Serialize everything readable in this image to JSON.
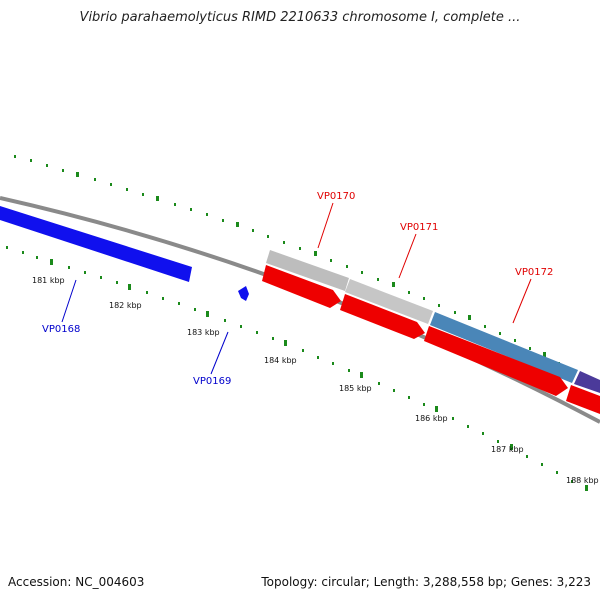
{
  "title": "Vibrio parahaemolyticus RIMD 2210633 chromosome I, complete ...",
  "footer": {
    "accession": "Accession: NC_004603",
    "summary": "Topology: circular; Length: 3,288,558 bp; Genes: 3,223"
  },
  "genes": {
    "vp0168": "VP0168",
    "vp0169": "VP0169",
    "vp0170": "VP0170",
    "vp0171": "VP0171",
    "vp0172": "VP0172"
  },
  "ticks": {
    "t181": "181 kbp",
    "t182": "182 kbp",
    "t183": "183 kbp",
    "t184": "184 kbp",
    "t185": "185 kbp",
    "t186": "186 kbp",
    "t187": "187 kbp",
    "t188": "188 kbp"
  },
  "colors": {
    "reverse_gene": "#1010ee",
    "forward_cds": "#ee0000",
    "gray_gene": "#bdbdbd",
    "steel_gene": "#4a86b8",
    "purple_gene": "#4b3a9a",
    "backbone": "#8a8a8a",
    "tick": "#1b8a1b",
    "red_label": "#e00000",
    "blue_label": "#0000cc"
  }
}
